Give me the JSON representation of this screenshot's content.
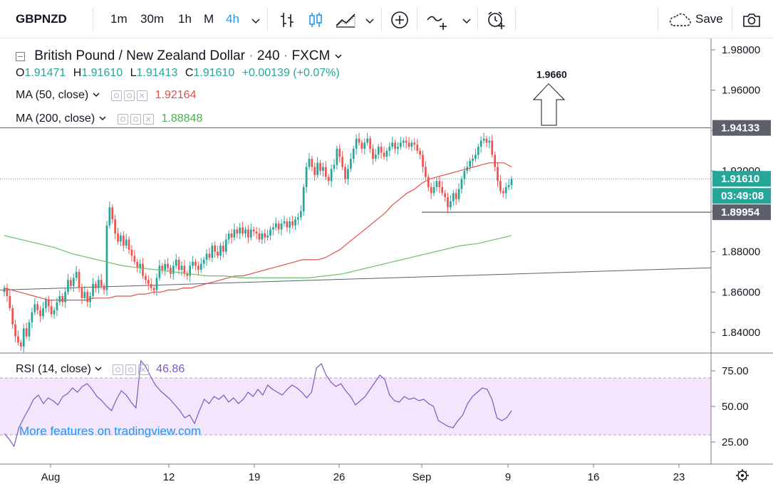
{
  "toolbar": {
    "symbol": "GBPNZD",
    "intervals": [
      "1m",
      "30m",
      "1h",
      "M",
      "4h"
    ],
    "active_interval": "4h",
    "save_label": "Save"
  },
  "legend": {
    "title": "British Pound / New Zealand Dollar",
    "interval": "240",
    "exchange": "FXCM",
    "sep": "·",
    "o_label": "O",
    "o_value": "1.91471",
    "h_label": "H",
    "h_value": "1.91610",
    "l_label": "L",
    "l_value": "1.91413",
    "c_label": "C",
    "c_value": "1.91610",
    "change": "+0.00139 (+0.07%)",
    "ma50_label": "MA (50, close)",
    "ma50_value": "1.92164",
    "ma200_label": "MA (200, close)",
    "ma200_value": "1.88848",
    "rsi_label": "RSI (14, close)",
    "rsi_value": "46.86",
    "watermark": "More features on tradingview.com"
  },
  "annotation": {
    "target_label": "1.9660"
  },
  "colors": {
    "up": "#26a69a",
    "down": "#ef5350",
    "ma50": "#e0504a",
    "ma200": "#6bbf6b",
    "rsi": "#7e57c2",
    "rsi_band": "#f3e5fb",
    "accent": "#2196f3",
    "tag_dark": "#5d606b"
  },
  "chart_data": {
    "type": "candlestick",
    "price_axis": {
      "ticks": [
        "1.98000",
        "1.96000",
        "1.94000",
        "1.92000",
        "1.90000",
        "1.88000",
        "1.86000",
        "1.84000"
      ]
    },
    "price_tags": {
      "resistance": "1.94133",
      "last": "1.91610",
      "countdown": "03:49:08",
      "support": "1.89954"
    },
    "levels": {
      "resistance": 1.94133,
      "support": 1.89954,
      "last": 1.9161
    },
    "time_axis": {
      "ticks": [
        "Aug",
        "12",
        "19",
        "26",
        "Sep",
        "9",
        "16",
        "23"
      ]
    },
    "rsi_axis": {
      "ticks": [
        "75.00",
        "50.00",
        "25.00"
      ],
      "band": [
        30,
        70
      ]
    },
    "trendline": {
      "start": [
        "Jul 30",
        1.861
      ],
      "end": [
        "Sep 29",
        1.872
      ]
    },
    "target": 1.966,
    "closes": [
      1.862,
      1.858,
      1.852,
      1.844,
      1.838,
      1.835,
      1.833,
      1.842,
      1.838,
      1.845,
      1.85,
      1.854,
      1.851,
      1.848,
      1.852,
      1.856,
      1.853,
      1.849,
      1.851,
      1.855,
      1.858,
      1.855,
      1.86,
      1.866,
      1.863,
      1.867,
      1.87,
      1.862,
      1.857,
      1.86,
      1.855,
      1.858,
      1.864,
      1.862,
      1.866,
      1.863,
      1.861,
      1.893,
      1.902,
      1.896,
      1.889,
      1.885,
      1.888,
      1.883,
      1.886,
      1.881,
      1.878,
      1.875,
      1.872,
      1.874,
      1.868,
      1.866,
      1.864,
      1.862,
      1.861,
      1.867,
      1.873,
      1.871,
      1.874,
      1.872,
      1.869,
      1.873,
      1.876,
      1.871,
      1.873,
      1.869,
      1.868,
      1.873,
      1.875,
      1.873,
      1.871,
      1.874,
      1.876,
      1.879,
      1.877,
      1.883,
      1.88,
      1.878,
      1.883,
      1.88,
      1.886,
      1.889,
      1.887,
      1.891,
      1.889,
      1.892,
      1.889,
      1.891,
      1.887,
      1.891,
      1.89,
      1.889,
      1.886,
      1.889,
      1.887,
      1.888,
      1.891,
      1.892,
      1.894,
      1.891,
      1.894,
      1.895,
      1.892,
      1.895,
      1.893,
      1.896,
      1.897,
      1.9,
      1.912,
      1.922,
      1.926,
      1.922,
      1.918,
      1.924,
      1.92,
      1.922,
      1.917,
      1.915,
      1.921,
      1.923,
      1.931,
      1.927,
      1.922,
      1.916,
      1.921,
      1.926,
      1.931,
      1.936,
      1.934,
      1.931,
      1.934,
      1.936,
      1.931,
      1.926,
      1.928,
      1.932,
      1.929,
      1.927,
      1.93,
      1.932,
      1.934,
      1.931,
      1.932,
      1.934,
      1.935,
      1.934,
      1.932,
      1.934,
      1.933,
      1.93,
      1.928,
      1.922,
      1.917,
      1.912,
      1.909,
      1.912,
      1.915,
      1.912,
      1.909,
      1.907,
      1.902,
      1.905,
      1.909,
      1.906,
      1.911,
      1.916,
      1.92,
      1.922,
      1.925,
      1.926,
      1.928,
      1.932,
      1.935,
      1.936,
      1.934,
      1.935,
      1.928,
      1.922,
      1.915,
      1.91,
      1.909,
      1.912,
      1.913,
      1.916
    ],
    "ma50": [
      1.862,
      1.861,
      1.86,
      1.859,
      1.858,
      1.857,
      1.856,
      1.856,
      1.856,
      1.856,
      1.856,
      1.856,
      1.857,
      1.857,
      1.857,
      1.858,
      1.858,
      1.858,
      1.859,
      1.859,
      1.86,
      1.86,
      1.861,
      1.861,
      1.862,
      1.862,
      1.863,
      1.864,
      1.865,
      1.866,
      1.867,
      1.868,
      1.868,
      1.869,
      1.87,
      1.871,
      1.872,
      1.873,
      1.874,
      1.875,
      1.876,
      1.876,
      1.876,
      1.877,
      1.879,
      1.881,
      1.884,
      1.887,
      1.89,
      1.893,
      1.896,
      1.899,
      1.903,
      1.906,
      1.909,
      1.911,
      1.914,
      1.916,
      1.917,
      1.918,
      1.919,
      1.92,
      1.921,
      1.922,
      1.923,
      1.924,
      1.924,
      1.924,
      1.922
    ],
    "ma50_start_index": 0,
    "ma50_step": 3,
    "ma200": [
      1.888,
      1.886,
      1.884,
      1.882,
      1.879,
      1.877,
      1.875,
      1.873,
      1.872,
      1.871,
      1.87,
      1.869,
      1.868,
      1.868,
      1.867,
      1.867,
      1.867,
      1.867,
      1.867,
      1.868,
      1.869,
      1.871,
      1.873,
      1.875,
      1.877,
      1.879,
      1.881,
      1.883,
      1.884,
      1.886,
      1.888
    ],
    "ma200_step": 6,
    "rsi": [
      31,
      27,
      22,
      35,
      42,
      48,
      55,
      58,
      52,
      56,
      54,
      51,
      57,
      59,
      63,
      60,
      64,
      66,
      62,
      57,
      54,
      50,
      47,
      55,
      61,
      58,
      53,
      49,
      82,
      78,
      71,
      65,
      61,
      58,
      55,
      51,
      47,
      42,
      44,
      38,
      47,
      55,
      52,
      57,
      55,
      58,
      53,
      56,
      52,
      55,
      60,
      57,
      62,
      58,
      65,
      62,
      60,
      58,
      62,
      65,
      63,
      60,
      56,
      60,
      77,
      80,
      72,
      67,
      64,
      66,
      61,
      57,
      51,
      54,
      57,
      62,
      67,
      72,
      69,
      58,
      54,
      53,
      57,
      55,
      56,
      54,
      55,
      52,
      50,
      40,
      38,
      36,
      35,
      40,
      44,
      52,
      57,
      60,
      63,
      62,
      55,
      42,
      40,
      42,
      47
    ]
  }
}
